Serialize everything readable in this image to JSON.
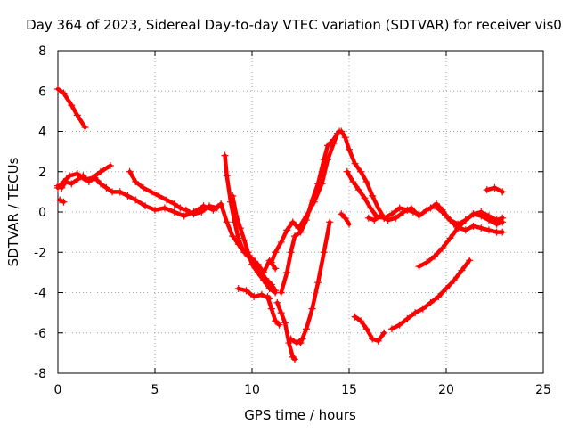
{
  "chart_data": {
    "type": "scatter",
    "title": "Day 364 of 2023, Sidereal Day-to-day VTEC variation (SDTVAR) for receiver vis0",
    "xlabel": "GPS time / hours",
    "ylabel": "SDTVAR / TECUs",
    "xlim": [
      0,
      25
    ],
    "ylim": [
      -8,
      8
    ],
    "x_ticks": [
      0,
      5,
      10,
      15,
      20,
      25
    ],
    "y_ticks": [
      -8,
      -6,
      -4,
      -2,
      0,
      2,
      4,
      6,
      8
    ],
    "x_tick_labels": [
      "0",
      "5",
      "10",
      "15",
      "20",
      "25"
    ],
    "y_tick_labels": [
      "-8",
      "-6",
      "-4",
      "-2",
      "0",
      "2",
      "4",
      "6",
      "8"
    ],
    "grid": true,
    "marker": "+",
    "color": "#ff0000",
    "series": [
      {
        "name": "s1",
        "x": [
          0.0,
          0.3,
          0.7,
          1.0,
          1.4
        ],
        "y": [
          6.1,
          5.9,
          5.3,
          4.8,
          4.2
        ]
      },
      {
        "name": "s2",
        "x": [
          0.0,
          0.3,
          0.6,
          1.0,
          1.4,
          1.8,
          2.2,
          2.7
        ],
        "y": [
          1.2,
          1.5,
          1.8,
          1.9,
          1.6,
          1.7,
          2.0,
          2.3
        ]
      },
      {
        "name": "s3",
        "x": [
          0.0,
          0.2,
          0.4,
          0.7,
          1.0,
          1.3,
          1.6,
          1.9,
          2.2,
          2.5,
          2.8,
          3.2,
          3.6,
          4.0,
          4.5,
          5.0,
          5.5,
          6.0,
          6.5,
          7.0,
          7.5,
          8.0,
          8.4,
          8.7,
          9.0,
          9.3,
          9.6,
          10.0,
          10.3,
          10.6,
          10.9,
          11.2
        ],
        "y": [
          1.3,
          1.2,
          1.5,
          1.4,
          1.6,
          1.8,
          1.5,
          1.7,
          1.4,
          1.2,
          1.0,
          1.0,
          0.8,
          0.6,
          0.3,
          0.1,
          0.2,
          0.0,
          -0.2,
          0.0,
          0.3,
          0.1,
          0.4,
          -0.5,
          -1.2,
          -1.6,
          -2.0,
          -2.3,
          -2.6,
          -3.0,
          -2.4,
          -2.8
        ]
      },
      {
        "name": "s4",
        "x": [
          0.1,
          0.3
        ],
        "y": [
          0.6,
          0.5
        ]
      },
      {
        "name": "s5",
        "x": [
          3.7,
          4.0,
          4.4,
          4.8,
          5.2,
          5.6,
          6.0,
          6.3,
          6.6,
          7.0,
          7.4,
          7.8,
          8.2
        ],
        "y": [
          2.0,
          1.5,
          1.2,
          1.0,
          0.8,
          0.6,
          0.4,
          0.2,
          0.1,
          -0.1,
          0.0,
          0.3,
          0.2
        ]
      },
      {
        "name": "s6",
        "x": [
          8.6,
          8.7,
          8.9,
          9.1,
          9.3,
          9.5,
          9.8,
          10.1,
          10.4,
          10.7,
          11.0,
          11.2
        ],
        "y": [
          2.8,
          1.8,
          0.5,
          -0.5,
          -1.3,
          -1.8,
          -2.2,
          -2.6,
          -3.0,
          -3.3,
          -3.6,
          -3.9
        ]
      },
      {
        "name": "s7",
        "x": [
          9.0,
          9.2,
          9.4,
          9.6,
          9.8,
          10.0,
          10.3,
          10.6,
          10.9,
          11.2
        ],
        "y": [
          0.8,
          -0.2,
          -0.8,
          -1.4,
          -2.0,
          -2.6,
          -3.0,
          -3.4,
          -3.8,
          -4.0
        ]
      },
      {
        "name": "s8",
        "x": [
          9.3,
          9.7,
          10.1,
          10.5,
          10.9
        ],
        "y": [
          -3.8,
          -3.9,
          -4.2,
          -4.1,
          -4.3
        ]
      },
      {
        "name": "s9",
        "x": [
          10.8,
          11.0,
          11.2,
          11.4
        ],
        "y": [
          -4.2,
          -4.8,
          -5.4,
          -5.6
        ]
      },
      {
        "name": "s10",
        "x": [
          11.0,
          11.2,
          11.5,
          11.8,
          12.1,
          12.4,
          12.8,
          13.2,
          13.6,
          13.9,
          14.2,
          14.4,
          14.6,
          14.8,
          15.0,
          15.3,
          15.6,
          15.9,
          16.2,
          16.5,
          16.8
        ],
        "y": [
          -2.5,
          -2.0,
          -1.5,
          -0.9,
          -0.5,
          -0.8,
          -0.2,
          0.5,
          1.4,
          2.6,
          3.4,
          3.9,
          4.0,
          3.7,
          3.1,
          2.4,
          2.0,
          1.5,
          0.8,
          0.2,
          -0.3
        ]
      },
      {
        "name": "s11",
        "x": [
          11.5,
          11.8,
          12.0,
          12.2,
          12.5,
          12.8,
          13.1,
          13.4,
          13.7,
          13.9,
          14.2,
          14.5
        ],
        "y": [
          -4.0,
          -3.0,
          -2.0,
          -1.2,
          -1.0,
          -0.4,
          0.6,
          1.4,
          2.6,
          3.3,
          3.6,
          4.0
        ]
      },
      {
        "name": "s12",
        "x": [
          11.3,
          11.5,
          11.7,
          11.9,
          12.1,
          12.2
        ],
        "y": [
          -4.5,
          -5.0,
          -5.5,
          -6.5,
          -7.2,
          -7.3
        ]
      },
      {
        "name": "s13",
        "x": [
          12.0,
          12.3,
          12.6
        ],
        "y": [
          -6.3,
          -6.5,
          -6.3
        ]
      },
      {
        "name": "s14",
        "x": [
          12.5,
          12.8,
          13.1,
          13.4,
          13.7,
          14.0
        ],
        "y": [
          -6.5,
          -5.8,
          -4.8,
          -3.5,
          -2.0,
          -0.5
        ]
      },
      {
        "name": "s15",
        "x": [
          14.6,
          14.8,
          15.0
        ],
        "y": [
          -0.1,
          -0.3,
          -0.6
        ]
      },
      {
        "name": "s16",
        "x": [
          14.9,
          15.2,
          15.5,
          15.8,
          16.1,
          16.4,
          16.8,
          17.2,
          17.6,
          18.0,
          18.3,
          18.6
        ],
        "y": [
          2.0,
          1.5,
          1.1,
          0.7,
          0.2,
          -0.2,
          -0.3,
          -0.1,
          0.2,
          0.1,
          0.0,
          -0.1
        ]
      },
      {
        "name": "s17",
        "x": [
          16.0,
          16.3,
          16.6,
          17.0,
          17.4,
          17.8,
          18.2,
          18.6,
          19.0,
          19.4,
          19.8,
          20.2,
          20.6,
          21.0,
          21.4,
          21.8,
          22.2,
          22.6,
          22.9
        ],
        "y": [
          -0.3,
          -0.4,
          -0.2,
          -0.4,
          -0.3,
          0.0,
          0.2,
          -0.2,
          0.1,
          0.3,
          0.0,
          -0.4,
          -0.6,
          -0.4,
          -0.1,
          -0.2,
          -0.4,
          -0.6,
          -0.5
        ]
      },
      {
        "name": "s18",
        "x": [
          19.2,
          19.5,
          19.8,
          20.1,
          20.4,
          20.7,
          21.0,
          21.4,
          21.8,
          22.2,
          22.6,
          22.9
        ],
        "y": [
          0.2,
          0.4,
          0.1,
          -0.3,
          -0.6,
          -0.8,
          -0.9,
          -0.7,
          -0.8,
          -0.9,
          -1.0,
          -1.0
        ]
      },
      {
        "name": "s19",
        "x": [
          15.3,
          15.6,
          15.9,
          16.2,
          16.5,
          16.8
        ],
        "y": [
          -5.2,
          -5.4,
          -5.8,
          -6.3,
          -6.4,
          -6.0
        ]
      },
      {
        "name": "s20",
        "x": [
          17.2,
          17.6,
          18.0,
          18.4,
          18.8,
          19.2,
          19.6,
          20.0,
          20.4,
          20.8,
          21.2
        ],
        "y": [
          -5.8,
          -5.6,
          -5.3,
          -5.0,
          -4.8,
          -4.5,
          -4.2,
          -3.8,
          -3.4,
          -2.9,
          -2.4
        ]
      },
      {
        "name": "s21",
        "x": [
          18.6,
          19.0,
          19.4,
          19.8,
          20.2,
          20.6,
          21.0,
          21.4,
          21.8,
          22.2,
          22.6,
          22.9
        ],
        "y": [
          -2.7,
          -2.5,
          -2.2,
          -1.8,
          -1.3,
          -0.8,
          -0.4,
          -0.1,
          0.0,
          -0.2,
          -0.4,
          -0.3
        ]
      },
      {
        "name": "s22",
        "x": [
          22.1,
          22.5,
          22.9
        ],
        "y": [
          1.1,
          1.2,
          1.0
        ]
      }
    ]
  }
}
